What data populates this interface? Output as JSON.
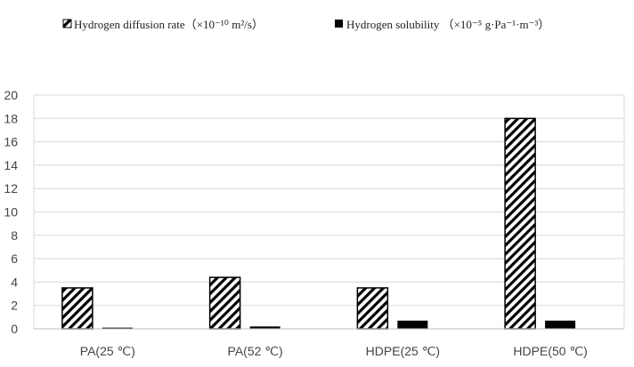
{
  "chart_data": {
    "type": "bar",
    "categories": [
      "PA(25 ℃)",
      "PA(52 ℃)",
      "HDPE(25 ℃)",
      "HDPE(50 ℃)"
    ],
    "series": [
      {
        "name": "Hydrogen diffusion rate（×10⁻¹⁰ m²/s）",
        "values": [
          3.5,
          4.4,
          3.5,
          18.0
        ],
        "pattern": "diagonal-hatch",
        "color": "#000000"
      },
      {
        "name": "Hydrogen solubility （×10⁻⁵ g·Pa⁻¹·m⁻³）",
        "values": [
          0.1,
          0.2,
          0.7,
          0.7
        ],
        "pattern": "solid",
        "color": "#000000"
      }
    ],
    "yticks": [
      "0",
      "2",
      "4",
      "6",
      "8",
      "10",
      "12",
      "14",
      "16",
      "18",
      "20"
    ],
    "ylim": [
      0,
      20
    ],
    "grid": true,
    "legend_position": "top",
    "title": "",
    "xlabel": "",
    "ylabel": ""
  }
}
